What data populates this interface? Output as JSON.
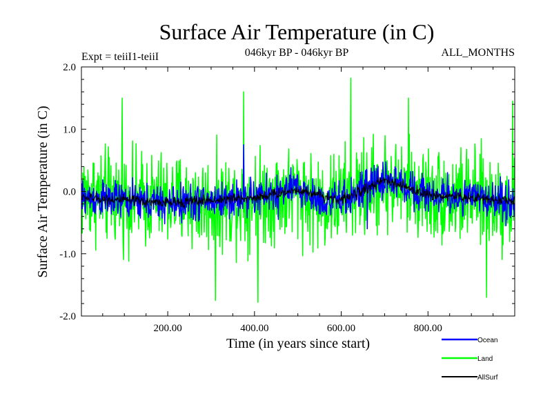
{
  "chart_data": {
    "type": "line",
    "title": "Surface Air Temperature (in C)",
    "subtitle": "046kyr BP - 046kyr BP",
    "experiment": "Expt = teiiI1-teiiI",
    "months": "ALL_MONTHS",
    "xlabel": "Time (in years since start)",
    "ylabel": "Surface Air Temperature (in C)",
    "xlim": [
      1,
      1000
    ],
    "ylim": [
      -2.0,
      2.0
    ],
    "x_ticks": [
      200,
      400,
      600,
      800
    ],
    "x_tick_labels": [
      "200.00",
      "400.00",
      "600.00",
      "800.00"
    ],
    "y_ticks": [
      -2.0,
      -1.0,
      0.0,
      1.0,
      2.0
    ],
    "y_tick_labels": [
      "-2.0",
      "-1.0",
      "0.0",
      "1.0",
      "2.0"
    ],
    "grid": false,
    "legend_position": "bottom-right",
    "series": [
      {
        "name": "Land",
        "color": "#00ff00",
        "stroke_px": 1.5,
        "band_centerline": [
          [
            1,
            -0.05
          ],
          [
            100,
            -0.1
          ],
          [
            200,
            -0.15
          ],
          [
            300,
            -0.2
          ],
          [
            400,
            -0.1
          ],
          [
            500,
            0.0
          ],
          [
            550,
            -0.2
          ],
          [
            600,
            -0.1
          ],
          [
            700,
            0.15
          ],
          [
            800,
            -0.05
          ],
          [
            900,
            -0.1
          ],
          [
            1000,
            -0.2
          ]
        ],
        "half_range": 0.9,
        "peaks": [
          [
            95,
            1.5
          ],
          [
            310,
            -1.75
          ],
          [
            375,
            1.6
          ],
          [
            408,
            -1.78
          ],
          [
            622,
            1.82
          ],
          [
            755,
            1.5
          ],
          [
            935,
            -1.7
          ],
          [
            995,
            1.45
          ]
        ]
      },
      {
        "name": "Ocean",
        "color": "#0000ff",
        "stroke_px": 1.5,
        "band_centerline": [
          [
            1,
            -0.1
          ],
          [
            100,
            -0.15
          ],
          [
            200,
            -0.2
          ],
          [
            300,
            -0.15
          ],
          [
            400,
            -0.1
          ],
          [
            500,
            0.05
          ],
          [
            550,
            -0.15
          ],
          [
            600,
            -0.15
          ],
          [
            700,
            0.2
          ],
          [
            800,
            -0.05
          ],
          [
            900,
            -0.1
          ],
          [
            1000,
            -0.15
          ]
        ],
        "half_range": 0.35,
        "peaks": [
          [
            375,
            0.75
          ],
          [
            455,
            -0.45
          ],
          [
            660,
            -0.6
          ],
          [
            980,
            -0.55
          ]
        ]
      },
      {
        "name": "AllSurf",
        "color": "#000000",
        "stroke_px": 1,
        "band_centerline": [
          [
            1,
            -0.1
          ],
          [
            200,
            -0.18
          ],
          [
            400,
            -0.1
          ],
          [
            500,
            0.03
          ],
          [
            600,
            -0.14
          ],
          [
            700,
            0.18
          ],
          [
            800,
            -0.05
          ],
          [
            1000,
            -0.15
          ]
        ],
        "half_range": 0.1,
        "peaks": []
      }
    ]
  }
}
